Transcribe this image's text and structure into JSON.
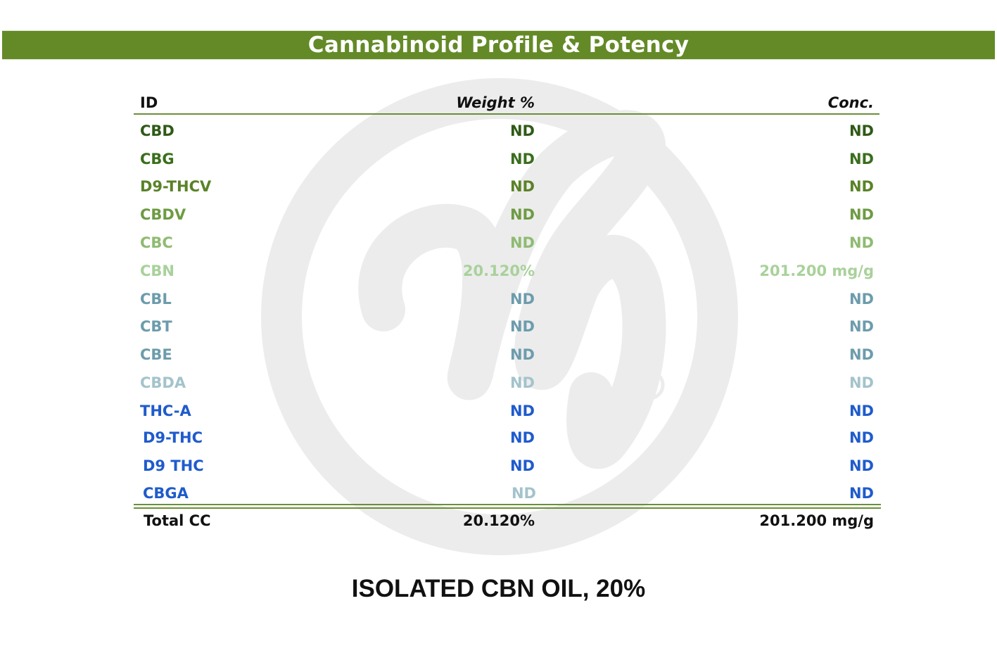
{
  "banner": {
    "title": "Cannabinoid Profile & Potency"
  },
  "table": {
    "headers": {
      "id": "ID",
      "weight": "Weight %",
      "conc": "Conc."
    },
    "rows": [
      {
        "id": "CBD",
        "weight": "ND",
        "conc": "ND",
        "color": "#2f5a16"
      },
      {
        "id": "CBG",
        "weight": "ND",
        "conc": "ND",
        "color": "#3a6e1c"
      },
      {
        "id": "D9-THCV",
        "weight": "ND",
        "conc": "ND",
        "color": "#5a8228"
      },
      {
        "id": "CBDV",
        "weight": "ND",
        "conc": "ND",
        "color": "#6e9b43"
      },
      {
        "id": "CBC",
        "weight": "ND",
        "conc": "ND",
        "color": "#8fbb72"
      },
      {
        "id": "CBN",
        "weight": "20.120%",
        "conc": "201.200 mg/g",
        "color": "#a9d19b"
      },
      {
        "id": "CBL",
        "weight": "ND",
        "conc": "ND",
        "color": "#6d9cac"
      },
      {
        "id": "CBT",
        "weight": "ND",
        "conc": "ND",
        "color": "#6d9cac"
      },
      {
        "id": "CBE",
        "weight": "ND",
        "conc": "ND",
        "color": "#6d9cac"
      },
      {
        "id": "CBDA",
        "weight": "ND",
        "conc": "ND",
        "color": "#a4c3cc"
      },
      {
        "id": "THC-A",
        "weight": "ND",
        "conc": "ND",
        "color": "#1f5bcc"
      },
      {
        "id": "D9-THC",
        "weight": "ND",
        "conc": "ND",
        "color": "#1f5bcc"
      },
      {
        "id": "D9 THC",
        "weight": "ND",
        "conc": "ND",
        "color": "#1f5bcc"
      },
      {
        "id": "CBGA",
        "weight": "ND",
        "conc": "ND",
        "color": "#1f5bcc",
        "weight_color": "#a4c3cc"
      }
    ],
    "total": {
      "id": "Total CC",
      "weight": "20.120%",
      "conc": "201.200 mg/g"
    }
  },
  "caption": "ISOLATED CBN OIL, 20%"
}
